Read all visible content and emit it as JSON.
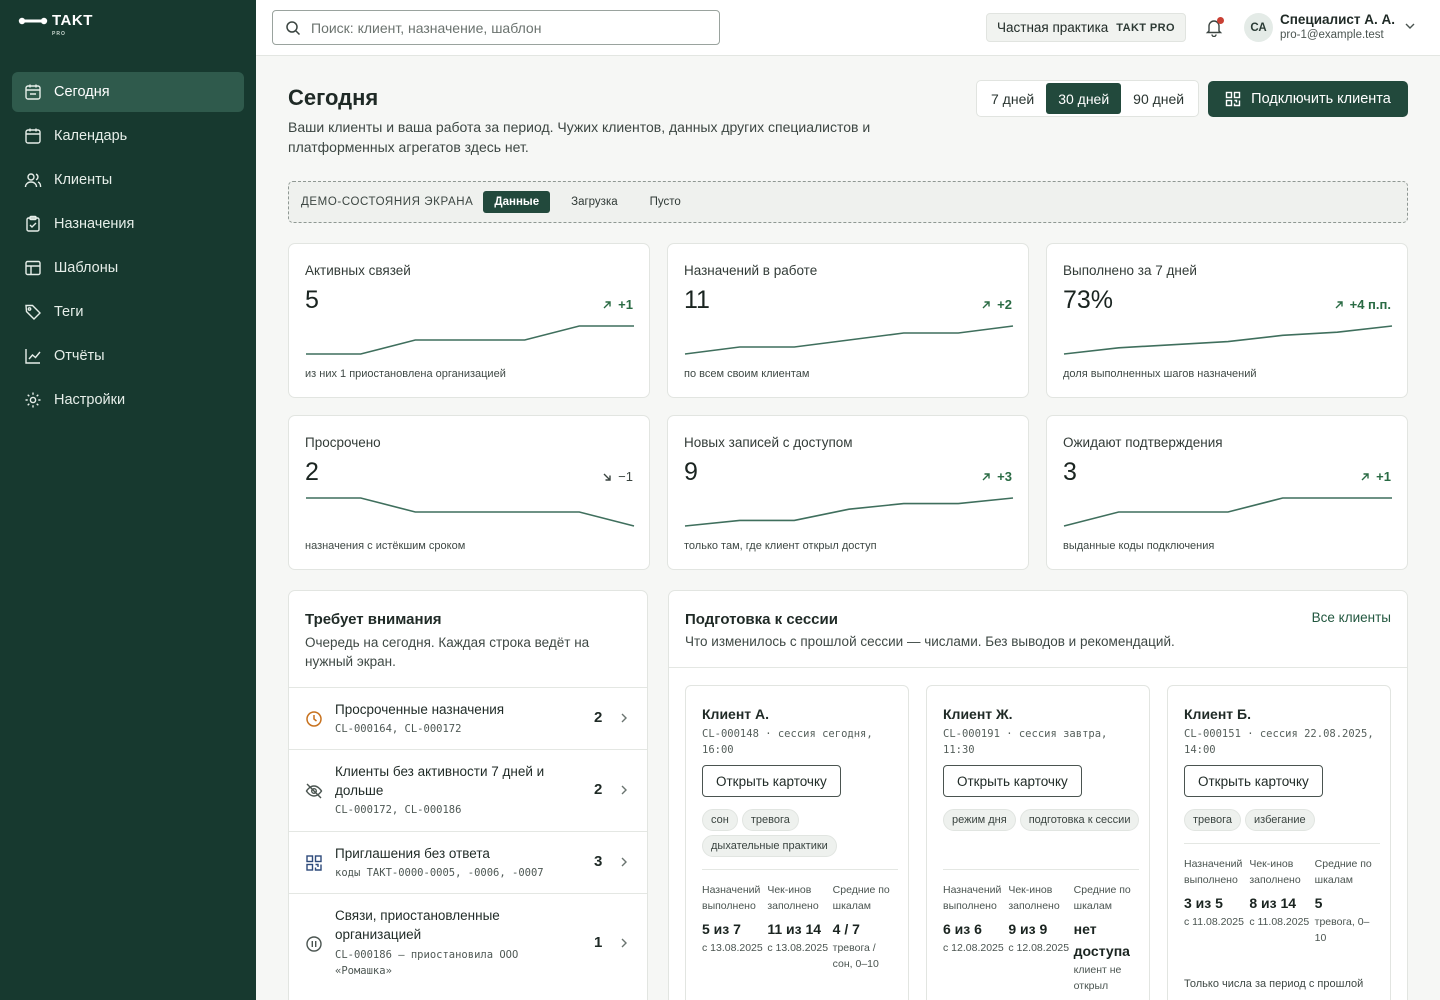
{
  "brand": {
    "name": "TAKT",
    "sub": "PRO"
  },
  "nav": [
    {
      "label": "Сегодня",
      "icon": "calendar-today-icon",
      "active": true
    },
    {
      "label": "Календарь",
      "icon": "calendar-icon"
    },
    {
      "label": "Клиенты",
      "icon": "users-icon"
    },
    {
      "label": "Назначения",
      "icon": "clipboard-icon"
    },
    {
      "label": "Шаблоны",
      "icon": "template-icon"
    },
    {
      "label": "Теги",
      "icon": "tag-icon"
    },
    {
      "label": "Отчёты",
      "icon": "chart-icon"
    },
    {
      "label": "Настройки",
      "icon": "gear-icon"
    }
  ],
  "header": {
    "search_placeholder": "Поиск: клиент, назначение, шаблон",
    "practice_label": "Частная практика",
    "practice_badge": "TAKT PRO",
    "avatar_initials": "СА",
    "user_name": "Специалист А. А.",
    "user_email": "pro-1@example.test"
  },
  "page": {
    "title": "Сегодня",
    "subtitle": "Ваши клиенты и ваша работа за период. Чужих клиентов, данных других специалистов и платформенных агрегатов здесь нет.",
    "periods": [
      "7 дней",
      "30 дней",
      "90 дней"
    ],
    "active_period": "30 дней",
    "connect_label": "Подключить клиента"
  },
  "demo": {
    "label": "ДЕМО-СОСТОЯНИЯ ЭКРАНА",
    "states": [
      "Данные",
      "Загрузка",
      "Пусто"
    ],
    "active": "Данные"
  },
  "stats": [
    {
      "label": "Активных связей",
      "value": "5",
      "delta": "+1",
      "direction": "up",
      "note": "из них 1 приостановлена организацией",
      "spark": [
        1,
        1,
        2,
        2,
        2,
        3,
        3
      ]
    },
    {
      "label": "Назначений в работе",
      "value": "11",
      "delta": "+2",
      "direction": "up",
      "note": "по всем своим клиентам",
      "spark": [
        8,
        9,
        9,
        10,
        11,
        11,
        12
      ]
    },
    {
      "label": "Выполнено за 7 дней",
      "value": "73%",
      "delta": "+4 п.п.",
      "direction": "up",
      "note": "доля выполненных шагов назначений",
      "spark": [
        65,
        67,
        68,
        69,
        71,
        72,
        74
      ]
    },
    {
      "label": "Просрочено",
      "value": "2",
      "delta": "−1",
      "direction": "down",
      "note": "назначения с истёкшим сроком",
      "spark": [
        3,
        3,
        2,
        2,
        2,
        2,
        1
      ]
    },
    {
      "label": "Новых записей с доступом",
      "value": "9",
      "delta": "+3",
      "direction": "up",
      "note": "только там, где клиент открыл доступ",
      "spark": [
        5,
        6,
        6,
        8,
        9,
        9,
        10
      ]
    },
    {
      "label": "Ожидают подтверждения",
      "value": "3",
      "delta": "+1",
      "direction": "up",
      "note": "выданные коды подключения",
      "spark": [
        1,
        2,
        2,
        2,
        3,
        3,
        3
      ]
    }
  ],
  "attention": {
    "title": "Требует внимания",
    "subtitle": "Очередь на сегодня. Каждая строка ведёт на нужный экран.",
    "rows": [
      {
        "icon": "clock-icon",
        "title": "Просроченные назначения",
        "ids": "CL-000164, CL-000172",
        "count": "2"
      },
      {
        "icon": "eye-off-icon",
        "title": "Клиенты без активности 7 дней и дольше",
        "ids": "CL-000172, CL-000186",
        "count": "2"
      },
      {
        "icon": "qr-icon",
        "title": "Приглашения без ответа",
        "ids": "коды TAKT-0000-0005, -0006, -0007",
        "count": "3"
      },
      {
        "icon": "pause-icon",
        "title": "Связи, приостановленные организацией",
        "ids": "CL-000186 — приостановила ООО «Ромашка»",
        "count": "1"
      }
    ]
  },
  "prep": {
    "title": "Подготовка к сессии",
    "subtitle": "Что изменилось с прошлой сессии — числами. Без выводов и рекомендаций.",
    "link": "Все клиенты",
    "open_label": "Открыть карточку",
    "metric_labels": [
      "Назначений выполнено",
      "Чек-инов заполнено",
      "Средние по шкалам"
    ],
    "clients": [
      {
        "name": "Клиент А.",
        "meta": "CL-000148 · сессия сегодня, 16:00",
        "tags": [
          "сон",
          "тревога",
          "дыхательные практики"
        ],
        "m1": "5 из 7",
        "m1n": "с 13.08.2025",
        "m2": "11 из 14",
        "m2n": "с 13.08.2025",
        "m3": "4 / 7",
        "m3n": "тревога / сон, 0–10",
        "foot": ""
      },
      {
        "name": "Клиент Ж.",
        "meta": "CL-000191 · сессия завтра, 11:30",
        "tags": [
          "режим дня",
          "подготовка к сессии"
        ],
        "m1": "6 из 6",
        "m1n": "с 12.08.2025",
        "m2": "9 из 9",
        "m2n": "с 12.08.2025",
        "m3": "нет доступа",
        "m3n": "клиент не открыл",
        "foot": ""
      },
      {
        "name": "Клиент Б.",
        "meta": "CL-000151 · сессия 22.08.2025, 14:00",
        "tags": [
          "тревога",
          "избегание"
        ],
        "m1": "3 из 5",
        "m1n": "с 11.08.2025",
        "m2": "8 из 14",
        "m2n": "с 11.08.2025",
        "m3": "5",
        "m3n": "тревога, 0–10",
        "foot": "Только числа за период с прошлой"
      }
    ]
  },
  "colors": {
    "sidebar": "#17392f",
    "accent": "#22493c",
    "positive": "#2a6b44",
    "alert": "#c94034"
  }
}
